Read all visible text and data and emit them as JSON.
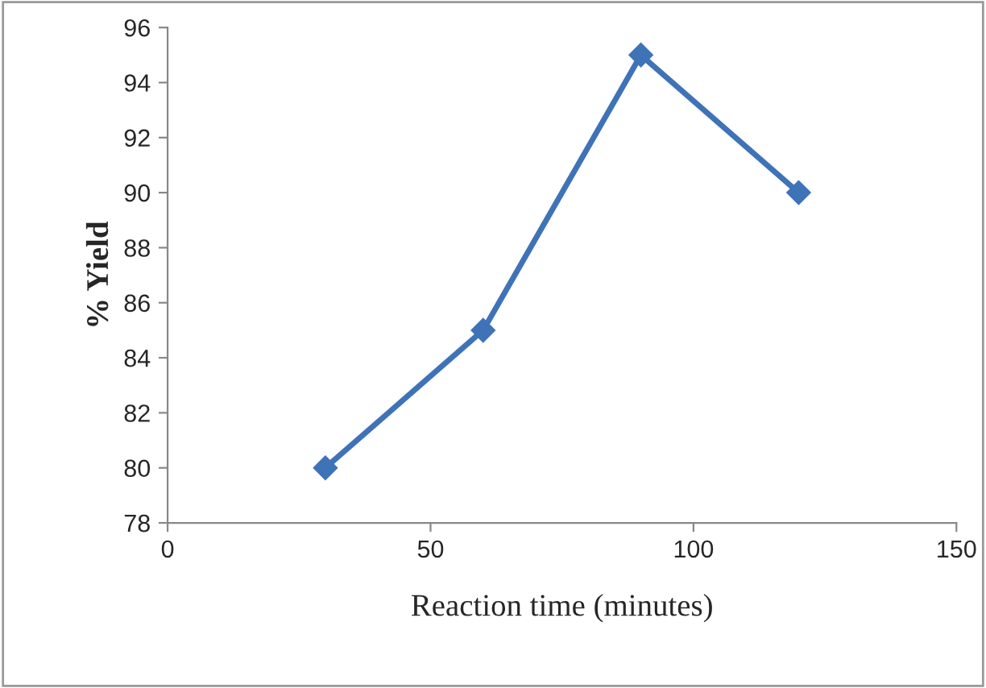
{
  "chart_data": {
    "type": "line",
    "xlabel": "Reaction time (minutes)",
    "ylabel": "% Yield",
    "x": [
      30,
      60,
      90,
      120
    ],
    "series": [
      {
        "color": "#3f73b8",
        "values": [
          80,
          85,
          95,
          90
        ]
      }
    ],
    "xlim": [
      0,
      150
    ],
    "xticks": [
      0,
      50,
      100,
      150
    ],
    "ylim": [
      78,
      96
    ],
    "yticks": [
      78,
      80,
      82,
      84,
      86,
      88,
      90,
      92,
      94,
      96
    ],
    "grid": false,
    "legend": false,
    "marker": "diamond",
    "line_style": "solid"
  }
}
